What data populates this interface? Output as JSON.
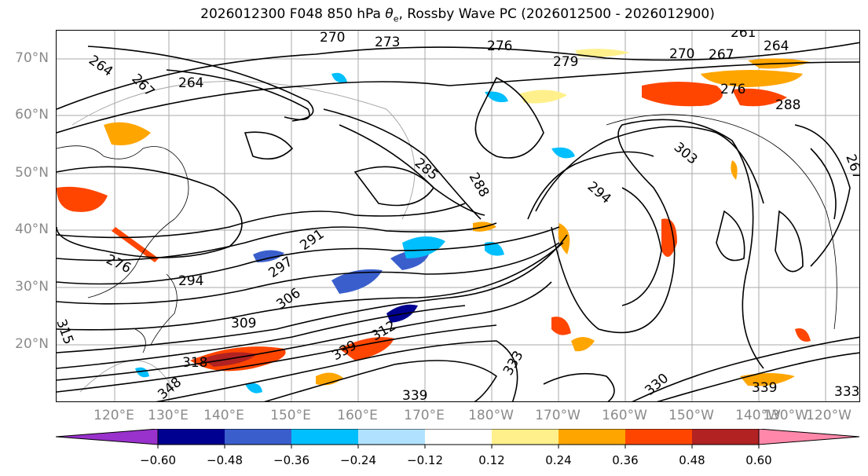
{
  "title": {
    "prefix": "2026012300 F048 850 hPa ",
    "theta": "θ",
    "theta_sub": "e",
    "suffix": ", Rossby Wave PC (2026012500 - 2026012900)"
  },
  "axes": {
    "latitude_labels": [
      "70°N",
      "60°N",
      "50°N",
      "40°N",
      "30°N",
      "20°N"
    ],
    "longitude_labels": [
      "120°E",
      "130°E",
      "140°E",
      "150°E",
      "160°E",
      "170°E",
      "180°W",
      "170°W",
      "160°W",
      "150°W",
      "140°W",
      "130°W",
      "120°W"
    ]
  },
  "contour_labels": [
    "264",
    "267",
    "264",
    "270",
    "273",
    "276",
    "279",
    "270",
    "267",
    "261",
    "264",
    "285",
    "288",
    "294",
    "303",
    "291",
    "297",
    "294",
    "306",
    "309",
    "276",
    "312",
    "315",
    "318",
    "339",
    "348",
    "333",
    "339",
    "330",
    "339",
    "333",
    "276",
    "288",
    "267"
  ],
  "colorbar": {
    "tick_labels": [
      "−0.60",
      "−0.48",
      "−0.36",
      "−0.24",
      "−0.12",
      "0.12",
      "0.24",
      "0.36",
      "0.48",
      "0.60"
    ],
    "colors": {
      "under": "#9932cc",
      "bins": [
        "#000090",
        "#3a5fcd",
        "#00bfff",
        "#b0e2ff",
        "#ffffff",
        "#fff08c",
        "#ffa500",
        "#ff4500",
        "#b22222"
      ],
      "over": "#ff88aa"
    }
  },
  "colors": {
    "contour": "#000000",
    "axis_label": "#8a8a8a",
    "grid": "#aaaaaa"
  }
}
